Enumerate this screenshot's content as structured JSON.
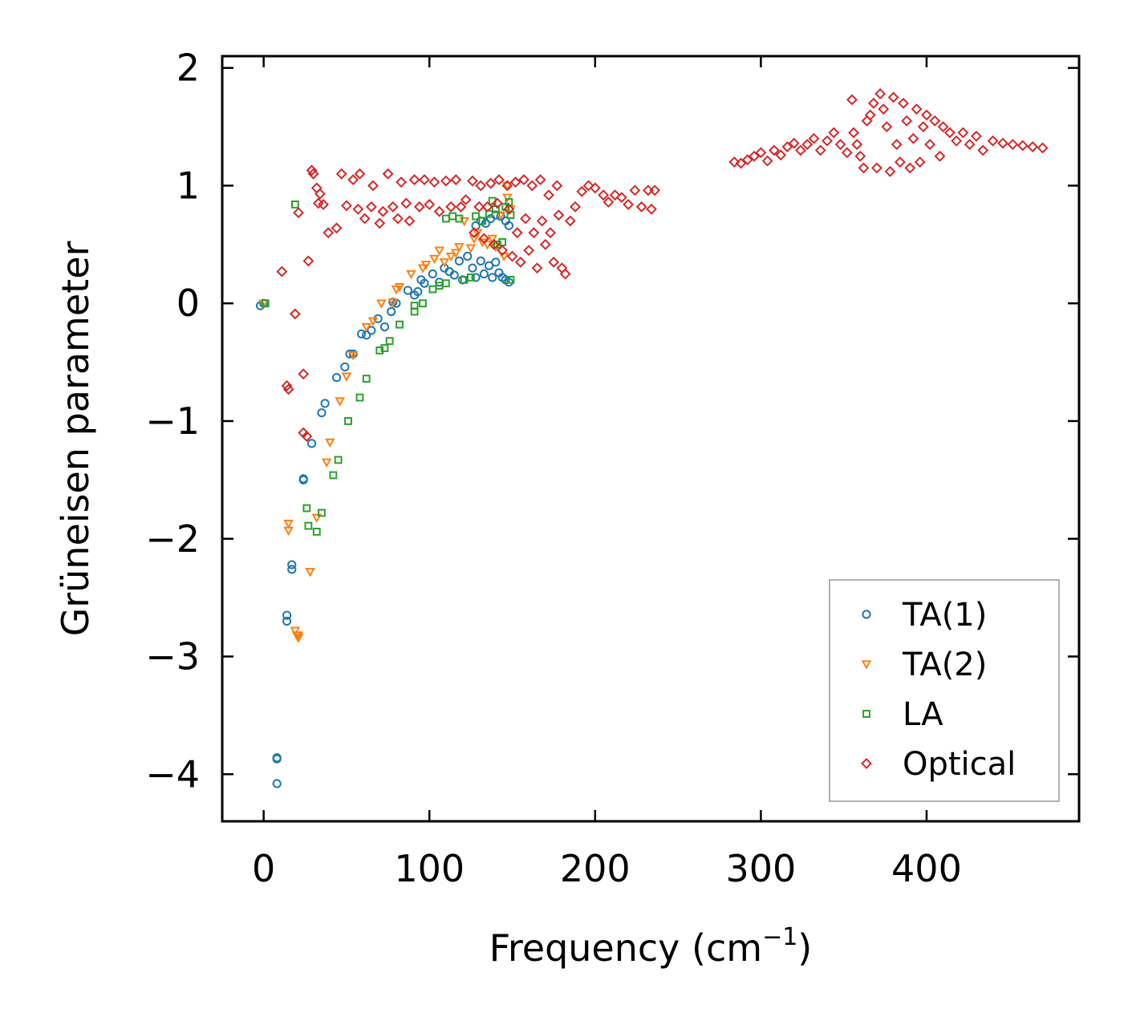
{
  "chart_data": {
    "type": "scatter",
    "xlabel": "Frequency (cm",
    "xlabel_sup": "−1",
    "xlabel_close": ")",
    "ylabel": "Grüneisen parameter",
    "xlim": [
      -25,
      492
    ],
    "ylim": [
      -4.4,
      2.1
    ],
    "x_ticks": [
      0,
      100,
      200,
      300,
      400
    ],
    "x_tick_labels": [
      "0",
      "100",
      "200",
      "300",
      "400"
    ],
    "y_ticks": [
      -4,
      -3,
      -2,
      -1,
      0,
      1,
      2
    ],
    "y_tick_labels": [
      "−4",
      "−3",
      "−2",
      "−1",
      "0",
      "1",
      "2"
    ],
    "legend_position": "lower-right",
    "series": [
      {
        "name": "TA(1)",
        "marker": "circle",
        "color": "#1f77b4",
        "points": [
          [
            -2,
            -0.02
          ],
          [
            0,
            0
          ],
          [
            8,
            -3.86
          ],
          [
            8,
            -3.87
          ],
          [
            8,
            -4.08
          ],
          [
            14,
            -2.65
          ],
          [
            14,
            -2.7
          ],
          [
            17,
            -2.22
          ],
          [
            17,
            -2.26
          ],
          [
            24,
            -1.49
          ],
          [
            24,
            -1.5
          ],
          [
            29,
            -1.19
          ],
          [
            35,
            -0.93
          ],
          [
            37,
            -0.85
          ],
          [
            44,
            -0.63
          ],
          [
            49,
            -0.54
          ],
          [
            52,
            -0.43
          ],
          [
            54,
            -0.43
          ],
          [
            59,
            -0.26
          ],
          [
            62,
            -0.27
          ],
          [
            65,
            -0.23
          ],
          [
            69,
            -0.13
          ],
          [
            73,
            -0.2
          ],
          [
            77,
            -0.07
          ],
          [
            78,
            0.01
          ],
          [
            80,
            0
          ],
          [
            87,
            0.11
          ],
          [
            91,
            0.07
          ],
          [
            93,
            0.1
          ],
          [
            95,
            0.2
          ],
          [
            97,
            0.17
          ],
          [
            102,
            0.25
          ],
          [
            106,
            0.18
          ],
          [
            109,
            0.3
          ],
          [
            112,
            0.27
          ],
          [
            115,
            0.24
          ],
          [
            118,
            0.36
          ],
          [
            120,
            0.2
          ],
          [
            123,
            0.4
          ],
          [
            126,
            0.3
          ],
          [
            128,
            0.22
          ],
          [
            131,
            0.36
          ],
          [
            133,
            0.25
          ],
          [
            136,
            0.32
          ],
          [
            138,
            0.22
          ],
          [
            140,
            0.35
          ],
          [
            142,
            0.26
          ],
          [
            144,
            0.22
          ],
          [
            146,
            0.2
          ],
          [
            148,
            0.18
          ],
          [
            128,
            0.66
          ],
          [
            131,
            0.7
          ],
          [
            134,
            0.68
          ],
          [
            137,
            0.72
          ],
          [
            140,
            0.75
          ],
          [
            143,
            0.74
          ],
          [
            146,
            0.7
          ],
          [
            148,
            0.66
          ]
        ]
      },
      {
        "name": "TA(2)",
        "marker": "triangle",
        "color": "#ff7f0e",
        "points": [
          [
            0,
            0
          ],
          [
            15,
            -1.87
          ],
          [
            15,
            -1.93
          ],
          [
            19,
            -2.78
          ],
          [
            20,
            -2.82
          ],
          [
            21,
            -2.82
          ],
          [
            21,
            -2.84
          ],
          [
            28,
            -2.28
          ],
          [
            32,
            -1.82
          ],
          [
            38,
            -1.35
          ],
          [
            40,
            -1.18
          ],
          [
            46,
            -0.83
          ],
          [
            50,
            -0.62
          ],
          [
            54,
            -0.44
          ],
          [
            62,
            -0.2
          ],
          [
            66,
            -0.15
          ],
          [
            71,
            0
          ],
          [
            78,
            0.01
          ],
          [
            80,
            0.12
          ],
          [
            82,
            0.14
          ],
          [
            89,
            0.25
          ],
          [
            96,
            0.3
          ],
          [
            98,
            0.33
          ],
          [
            103,
            0.38
          ],
          [
            106,
            0.45
          ],
          [
            109,
            0.35
          ],
          [
            113,
            0.4
          ],
          [
            116,
            0.43
          ],
          [
            118,
            0.48
          ],
          [
            121,
            0.7
          ],
          [
            125,
            0.47
          ],
          [
            127,
            0.55
          ],
          [
            129,
            0.6
          ],
          [
            132,
            0.52
          ],
          [
            135,
            0.5
          ],
          [
            138,
            0.55
          ],
          [
            140,
            0.48
          ],
          [
            143,
            0.75
          ],
          [
            145,
            0.4
          ],
          [
            147,
            0.9
          ],
          [
            147,
            1.0
          ],
          [
            149,
            0.8
          ]
        ]
      },
      {
        "name": "LA",
        "marker": "square",
        "color": "#2ca02c",
        "points": [
          [
            1,
            0
          ],
          [
            19,
            0.84
          ],
          [
            26,
            -1.74
          ],
          [
            27,
            -1.89
          ],
          [
            32,
            -1.94
          ],
          [
            35,
            -1.78
          ],
          [
            42,
            -1.46
          ],
          [
            45,
            -1.33
          ],
          [
            51,
            -1.0
          ],
          [
            58,
            -0.8
          ],
          [
            62,
            -0.64
          ],
          [
            70,
            -0.4
          ],
          [
            73,
            -0.38
          ],
          [
            76,
            -0.32
          ],
          [
            82,
            -0.18
          ],
          [
            91,
            -0.07
          ],
          [
            91,
            -0.02
          ],
          [
            96,
            0.0
          ],
          [
            102,
            0.12
          ],
          [
            106,
            0.15
          ],
          [
            110,
            0.17
          ],
          [
            110,
            0.72
          ],
          [
            114,
            0.74
          ],
          [
            118,
            0.72
          ],
          [
            121,
            0.2
          ],
          [
            125,
            0.22
          ],
          [
            128,
            0.74
          ],
          [
            132,
            0.7
          ],
          [
            136,
            0.76
          ],
          [
            138,
            0.87
          ],
          [
            140,
            0.8
          ],
          [
            141,
            0.5
          ],
          [
            144,
            0.52
          ],
          [
            146,
            0.82
          ],
          [
            148,
            0.86
          ],
          [
            149,
            0.75
          ],
          [
            149,
            0.2
          ]
        ]
      },
      {
        "name": "Optical",
        "marker": "diamond",
        "color": "#d62728",
        "points": [
          [
            11,
            0.27
          ],
          [
            14,
            -0.7
          ],
          [
            15,
            -0.73
          ],
          [
            19,
            -0.09
          ],
          [
            21,
            0.77
          ],
          [
            24,
            -0.6
          ],
          [
            24,
            -1.1
          ],
          [
            26,
            -1.13
          ],
          [
            27,
            0.36
          ],
          [
            29,
            1.13
          ],
          [
            30,
            1.1
          ],
          [
            32,
            0.98
          ],
          [
            34,
            0.93
          ],
          [
            33,
            0.85
          ],
          [
            36,
            0.84
          ],
          [
            39,
            0.6
          ],
          [
            44,
            0.64
          ],
          [
            47,
            1.1
          ],
          [
            50,
            0.83
          ],
          [
            54,
            1.05
          ],
          [
            57,
            0.8
          ],
          [
            58,
            1.1
          ],
          [
            61,
            0.72
          ],
          [
            65,
            0.82
          ],
          [
            66,
            1.0
          ],
          [
            70,
            0.68
          ],
          [
            72,
            0.78
          ],
          [
            75,
            1.1
          ],
          [
            78,
            0.82
          ],
          [
            81,
            0.72
          ],
          [
            83,
            1.03
          ],
          [
            86,
            0.85
          ],
          [
            88,
            0.7
          ],
          [
            91,
            1.05
          ],
          [
            94,
            0.82
          ],
          [
            97,
            1.05
          ],
          [
            100,
            0.84
          ],
          [
            103,
            1.03
          ],
          [
            106,
            0.78
          ],
          [
            110,
            1.04
          ],
          [
            113,
            0.82
          ],
          [
            116,
            1.05
          ],
          [
            119,
            0.82
          ],
          [
            122,
            0.88
          ],
          [
            126,
            1.04
          ],
          [
            127,
            0.6
          ],
          [
            130,
            0.82
          ],
          [
            131,
            1.0
          ],
          [
            133,
            0.55
          ],
          [
            135,
            0.82
          ],
          [
            137,
            1.02
          ],
          [
            139,
            0.5
          ],
          [
            141,
            0.85
          ],
          [
            142,
            1.05
          ],
          [
            144,
            0.45
          ],
          [
            147,
            1.0
          ],
          [
            148,
            0.8
          ],
          [
            150,
            0.4
          ],
          [
            152,
            1.03
          ],
          [
            153,
            0.6
          ],
          [
            155,
            0.35
          ],
          [
            157,
            1.05
          ],
          [
            158,
            0.72
          ],
          [
            160,
            0.45
          ],
          [
            162,
            1.0
          ],
          [
            163,
            0.6
          ],
          [
            165,
            0.3
          ],
          [
            167,
            1.05
          ],
          [
            168,
            0.7
          ],
          [
            170,
            0.5
          ],
          [
            172,
            0.92
          ],
          [
            173,
            0.6
          ],
          [
            175,
            0.35
          ],
          [
            177,
            1.0
          ],
          [
            178,
            0.75
          ],
          [
            180,
            0.3
          ],
          [
            182,
            0.25
          ],
          [
            185,
            0.7
          ],
          [
            188,
            0.82
          ],
          [
            192,
            0.95
          ],
          [
            196,
            1.0
          ],
          [
            200,
            0.98
          ],
          [
            205,
            0.92
          ],
          [
            208,
            0.86
          ],
          [
            212,
            0.92
          ],
          [
            216,
            0.9
          ],
          [
            220,
            0.84
          ],
          [
            224,
            0.96
          ],
          [
            228,
            0.82
          ],
          [
            232,
            0.96
          ],
          [
            234,
            0.8
          ],
          [
            236,
            0.96
          ],
          [
            284,
            1.2
          ],
          [
            288,
            1.19
          ],
          [
            292,
            1.22
          ],
          [
            296,
            1.25
          ],
          [
            300,
            1.28
          ],
          [
            304,
            1.21
          ],
          [
            308,
            1.3
          ],
          [
            312,
            1.26
          ],
          [
            316,
            1.33
          ],
          [
            320,
            1.36
          ],
          [
            324,
            1.3
          ],
          [
            328,
            1.35
          ],
          [
            332,
            1.4
          ],
          [
            336,
            1.3
          ],
          [
            340,
            1.38
          ],
          [
            344,
            1.45
          ],
          [
            348,
            1.35
          ],
          [
            352,
            1.28
          ],
          [
            355,
            1.73
          ],
          [
            356,
            1.45
          ],
          [
            358,
            1.35
          ],
          [
            360,
            1.25
          ],
          [
            362,
            1.15
          ],
          [
            364,
            1.55
          ],
          [
            366,
            1.6
          ],
          [
            368,
            1.7
          ],
          [
            370,
            1.15
          ],
          [
            372,
            1.78
          ],
          [
            374,
            1.65
          ],
          [
            376,
            1.5
          ],
          [
            378,
            1.12
          ],
          [
            380,
            1.75
          ],
          [
            382,
            1.35
          ],
          [
            384,
            1.2
          ],
          [
            386,
            1.7
          ],
          [
            388,
            1.55
          ],
          [
            390,
            1.15
          ],
          [
            392,
            1.4
          ],
          [
            394,
            1.65
          ],
          [
            396,
            1.2
          ],
          [
            398,
            1.5
          ],
          [
            400,
            1.6
          ],
          [
            402,
            1.35
          ],
          [
            405,
            1.55
          ],
          [
            408,
            1.25
          ],
          [
            410,
            1.5
          ],
          [
            414,
            1.45
          ],
          [
            418,
            1.38
          ],
          [
            422,
            1.45
          ],
          [
            426,
            1.35
          ],
          [
            430,
            1.42
          ],
          [
            434,
            1.3
          ],
          [
            440,
            1.38
          ],
          [
            446,
            1.36
          ],
          [
            452,
            1.35
          ],
          [
            458,
            1.34
          ],
          [
            464,
            1.33
          ],
          [
            470,
            1.32
          ]
        ]
      }
    ]
  }
}
